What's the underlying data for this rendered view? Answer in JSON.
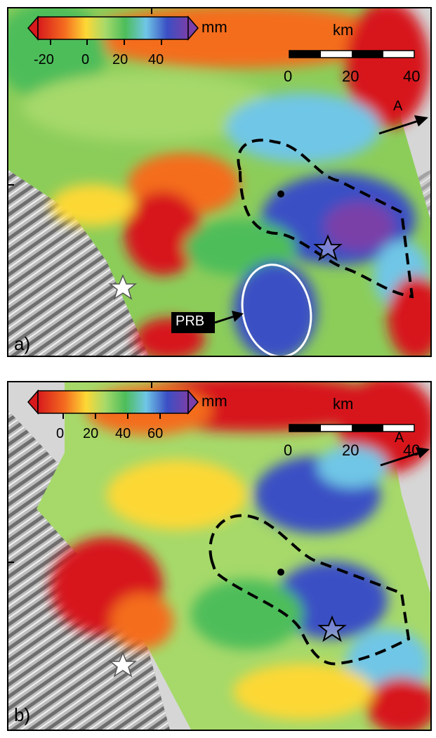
{
  "panels": [
    {
      "label": "a)",
      "colorbar": {
        "unit": "mm",
        "ticks": [
          "-20",
          "0",
          "20",
          "40"
        ]
      },
      "scalebar": {
        "unit": "km",
        "ticks": [
          "0",
          "20",
          "40"
        ]
      },
      "direction_label": "A",
      "annotation": "PRB"
    },
    {
      "label": "b)",
      "colorbar": {
        "unit": "mm",
        "ticks": [
          "0",
          "20",
          "40",
          "60"
        ]
      },
      "scalebar": {
        "unit": "km",
        "ticks": [
          "0",
          "20",
          "40"
        ]
      },
      "direction_label": "A"
    }
  ],
  "colors": {
    "colormap": [
      "#d7191c",
      "#f46d1f",
      "#fdd835",
      "#a6d96a",
      "#4dbd5a",
      "#6fc6e6",
      "#3b4fc4",
      "#7a3fa8"
    ],
    "relief": "#9a9a9a",
    "background": "#d9d9d9"
  }
}
